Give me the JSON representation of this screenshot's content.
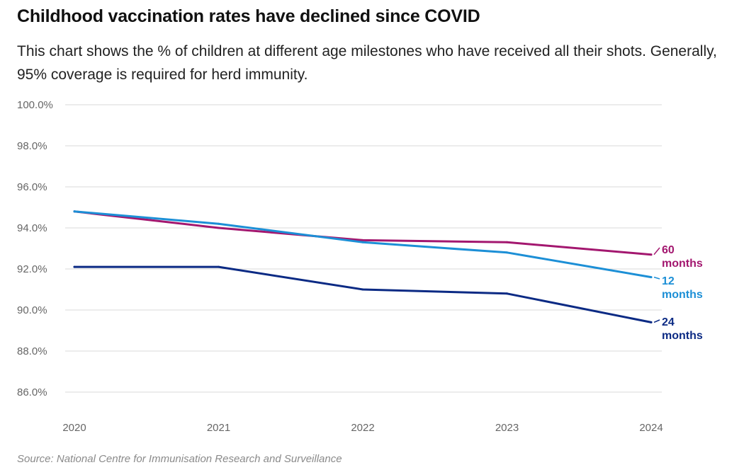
{
  "title": "Childhood vaccination rates have declined since COVID",
  "subtitle": "This chart shows the % of children at different age milestones who have received all their shots. Generally, 95% coverage is required for herd immunity.",
  "source": "Source: National Centre for Immunisation Research and Surveillance",
  "chart_data": {
    "type": "line",
    "title": "Childhood vaccination rates have declined since COVID",
    "xlabel": "",
    "ylabel": "",
    "x": [
      "2020",
      "2021",
      "2022",
      "2023",
      "2024"
    ],
    "ylim": [
      86,
      100
    ],
    "yticks": [
      "100.0%",
      "98.0%",
      "96.0%",
      "94.0%",
      "92.0%",
      "90.0%",
      "88.0%",
      "86.0%"
    ],
    "ytick_values": [
      100,
      98,
      96,
      94,
      92,
      90,
      88,
      86
    ],
    "grid": true,
    "series": [
      {
        "name": "60 months",
        "label_lines": [
          "60",
          "months"
        ],
        "color": "#a3176f",
        "values": [
          94.8,
          94.0,
          93.4,
          93.3,
          92.7
        ]
      },
      {
        "name": "12 months",
        "label_lines": [
          "12",
          "months"
        ],
        "color": "#1c8fd6",
        "values": [
          94.8,
          94.2,
          93.3,
          92.8,
          91.6
        ]
      },
      {
        "name": "24 months",
        "label_lines": [
          "24",
          "months"
        ],
        "color": "#0b2a84",
        "values": [
          92.1,
          92.1,
          91.0,
          90.8,
          89.4
        ]
      }
    ]
  },
  "colors": {
    "grid": "#d9d9d9",
    "tick_text": "#666666"
  }
}
